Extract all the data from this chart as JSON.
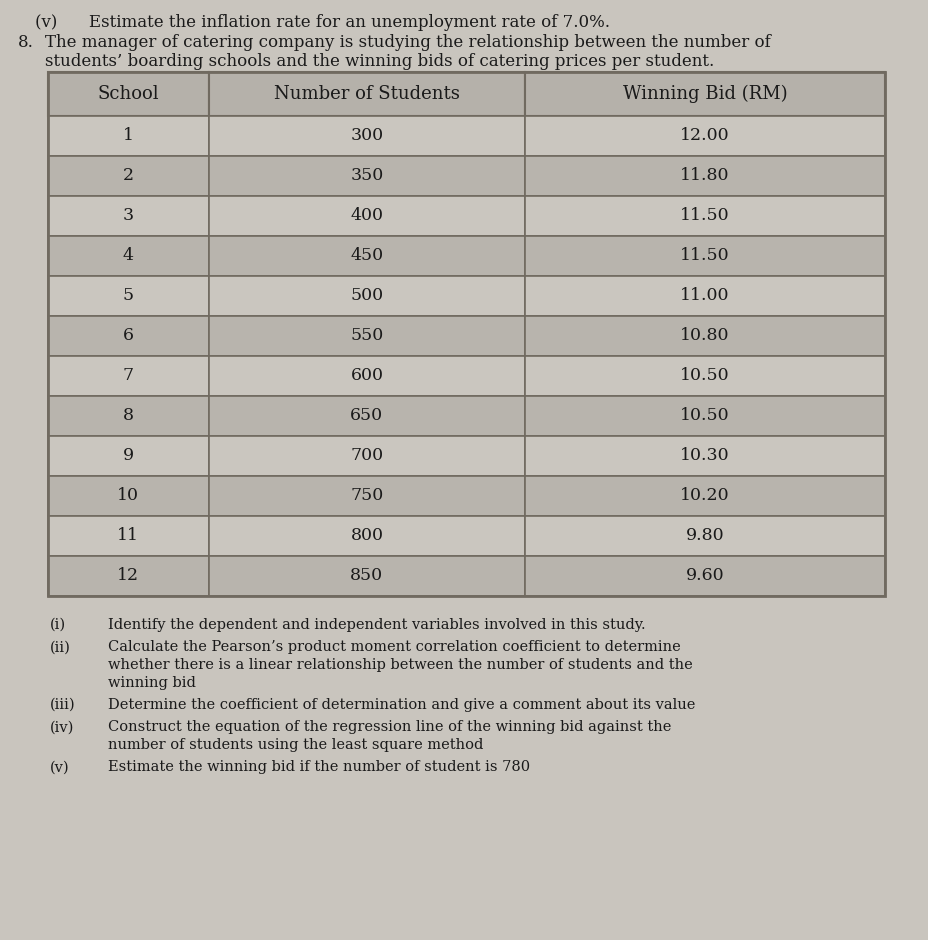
{
  "header_line1": "(v)      Estimate the inflation rate for an unemployment rate of 7.0%.",
  "header_line2a": "The manager of catering company is studying the relationship between the number of",
  "header_line2b": "students’ boarding schools and the winning bids of catering prices per student.",
  "col_headers": [
    "School",
    "Number of Students",
    "Winning Bid (RM)"
  ],
  "table_data": [
    [
      "1",
      "300",
      "12.00"
    ],
    [
      "2",
      "350",
      "11.80"
    ],
    [
      "3",
      "400",
      "11.50"
    ],
    [
      "4",
      "450",
      "11.50"
    ],
    [
      "5",
      "500",
      "11.00"
    ],
    [
      "6",
      "550",
      "10.80"
    ],
    [
      "7",
      "600",
      "10.50"
    ],
    [
      "8",
      "650",
      "10.50"
    ],
    [
      "9",
      "700",
      "10.30"
    ],
    [
      "10",
      "750",
      "10.20"
    ],
    [
      "11",
      "800",
      "9.80"
    ],
    [
      "12",
      "850",
      "9.60"
    ]
  ],
  "sub_questions": [
    {
      "label": "(i)",
      "lines": [
        "Identify the dependent and independent variables involved in this study."
      ]
    },
    {
      "label": "(ii)",
      "lines": [
        "Calculate the Pearson’s product moment correlation coefficient to determine",
        "whether there is a linear relationship between the number of students and the",
        "winning bid"
      ]
    },
    {
      "label": "(iii)",
      "lines": [
        "Determine the coefficient of determination and give a comment about its value"
      ]
    },
    {
      "label": "(iv)",
      "lines": [
        "Construct the equation of the regression line of the winning bid against the",
        "number of students using the least square method"
      ]
    },
    {
      "label": "(v)",
      "lines": [
        "Estimate the winning bid if the number of student is 780"
      ]
    }
  ],
  "bg_color": "#c9c5be",
  "cell_color_odd": "#cac6bf",
  "cell_color_even": "#b8b4ad",
  "header_cell_color": "#b5b1aa",
  "border_color": "#706a60",
  "text_color": "#1a1a1a",
  "num_label": "8."
}
